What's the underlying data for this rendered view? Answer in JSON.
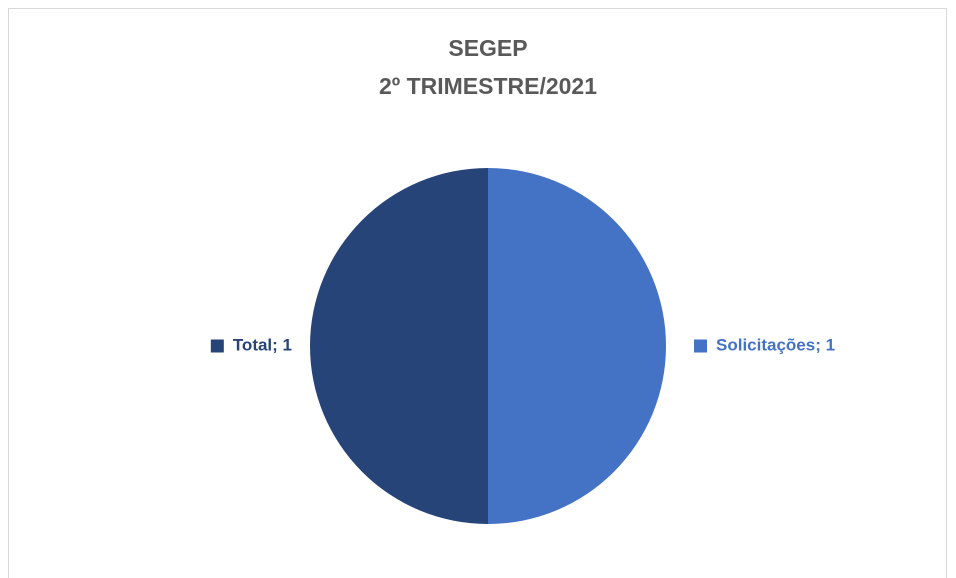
{
  "chart_data": {
    "type": "pie",
    "title": "SEGEP",
    "subtitle": "2º TRIMESTRE/2021",
    "values": [
      1,
      1
    ],
    "value_labels": [
      "Solicitações; 1",
      "Total; 1"
    ],
    "colors": [
      "#4472c4",
      "#264478"
    ]
  }
}
